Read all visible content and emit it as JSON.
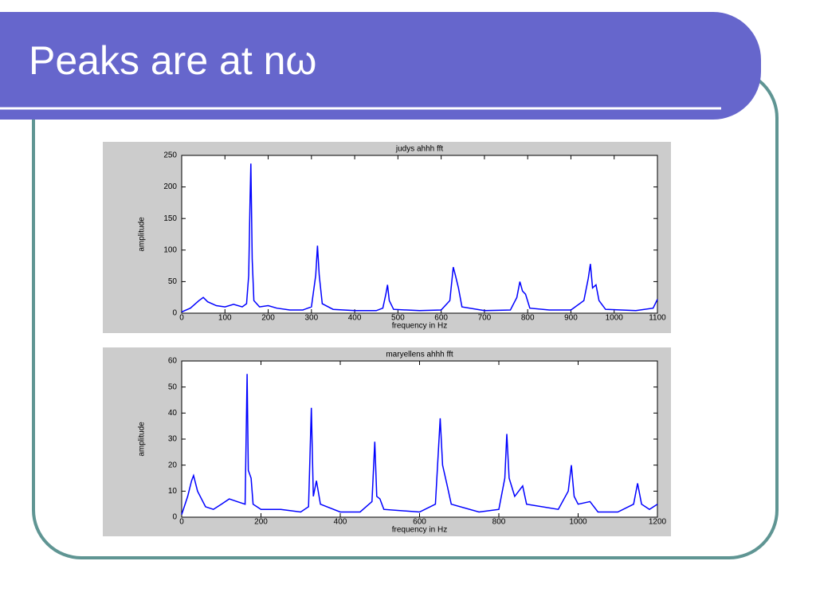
{
  "title": "Peaks are at nω",
  "chart_data": [
    {
      "type": "line",
      "title": "judys ahhh fft",
      "x_label": "frequency in Hz",
      "y_label": "amplitude",
      "xlim": [
        0,
        1100
      ],
      "ylim": [
        0,
        250
      ],
      "xticks": [
        0,
        100,
        200,
        300,
        400,
        500,
        600,
        700,
        800,
        900,
        1000,
        1100
      ],
      "yticks": [
        0,
        50,
        100,
        150,
        200,
        250
      ],
      "series": [
        {
          "color": "#0000ff",
          "x": [
            0,
            20,
            40,
            50,
            60,
            80,
            100,
            120,
            140,
            150,
            155,
            158,
            160,
            163,
            167,
            180,
            200,
            220,
            250,
            280,
            300,
            310,
            314,
            318,
            325,
            350,
            400,
            450,
            465,
            472,
            476,
            480,
            490,
            550,
            600,
            620,
            628,
            633,
            640,
            648,
            700,
            760,
            775,
            782,
            788,
            795,
            805,
            850,
            900,
            930,
            940,
            945,
            950,
            958,
            965,
            980,
            1050,
            1090,
            1100
          ],
          "values": [
            2,
            8,
            20,
            25,
            18,
            12,
            10,
            14,
            10,
            15,
            60,
            180,
            237,
            85,
            20,
            10,
            12,
            8,
            5,
            5,
            10,
            60,
            107,
            60,
            15,
            6,
            4,
            4,
            8,
            30,
            45,
            20,
            6,
            4,
            5,
            20,
            73,
            60,
            40,
            10,
            4,
            5,
            25,
            50,
            35,
            30,
            8,
            5,
            5,
            20,
            55,
            78,
            40,
            45,
            20,
            6,
            4,
            8,
            22
          ]
        }
      ]
    },
    {
      "type": "line",
      "title": "maryellens ahhh fft",
      "x_label": "frequency in Hz",
      "y_label": "amplitude",
      "xlim": [
        0,
        1200
      ],
      "ylim": [
        0,
        60
      ],
      "xticks": [
        0,
        200,
        400,
        600,
        800,
        1000,
        1200
      ],
      "yticks": [
        0,
        10,
        20,
        30,
        40,
        50,
        60
      ],
      "series": [
        {
          "color": "#0000ff",
          "x": [
            0,
            15,
            25,
            30,
            40,
            60,
            80,
            100,
            120,
            140,
            160,
            165,
            168,
            175,
            180,
            200,
            250,
            300,
            320,
            327,
            332,
            340,
            350,
            400,
            450,
            480,
            487,
            492,
            500,
            510,
            600,
            640,
            652,
            658,
            670,
            680,
            750,
            800,
            815,
            820,
            826,
            840,
            860,
            870,
            950,
            975,
            983,
            990,
            1000,
            1030,
            1050,
            1100,
            1140,
            1150,
            1160,
            1180,
            1200
          ],
          "values": [
            1,
            8,
            14,
            16,
            10,
            4,
            3,
            5,
            7,
            6,
            5,
            55,
            18,
            15,
            5,
            3,
            3,
            2,
            4,
            42,
            8,
            14,
            5,
            2,
            2,
            6,
            29,
            8,
            7,
            3,
            2,
            5,
            38,
            20,
            12,
            5,
            2,
            3,
            15,
            32,
            15,
            8,
            12,
            5,
            3,
            10,
            20,
            8,
            5,
            6,
            2,
            2,
            5,
            13,
            5,
            3,
            5
          ]
        }
      ]
    }
  ]
}
